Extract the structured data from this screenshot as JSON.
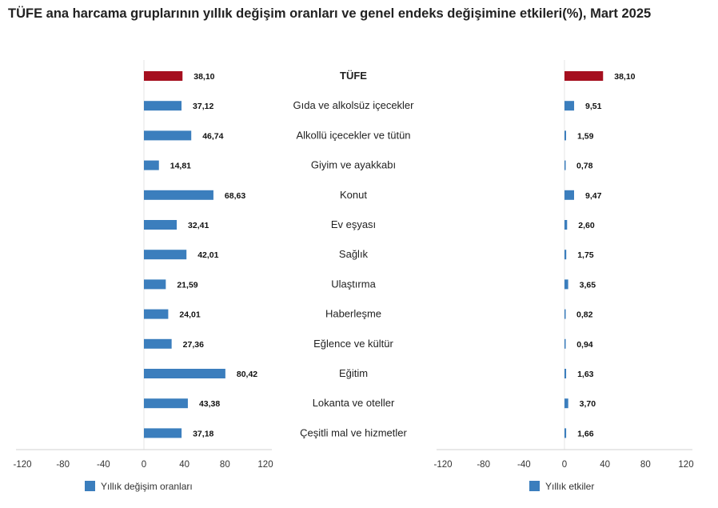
{
  "title": "TÜFE ana harcama gruplarının yıllık değişim oranları ve genel endeks değişimine etkileri(%), Mart 2025",
  "colors": {
    "highlight": "#a50f1f",
    "bar": "#3b7ebd",
    "axis": "#d0d0d0"
  },
  "chart_data": [
    {
      "type": "bar",
      "orientation": "horizontal",
      "legend": "Yıllık değişim oranları",
      "legend_position": "bottom-left",
      "categories": [
        "TÜFE",
        "Gıda ve alkolsüz içecekler",
        "Alkollü içecekler ve tütün",
        "Giyim ve ayakkabı",
        "Konut",
        "Ev eşyası",
        "Sağlık",
        "Ulaştırma",
        "Haberleşme",
        "Eğlence ve kültür",
        "Eğitim",
        "Lokanta ve oteller",
        "Çeşitli mal ve hizmetler"
      ],
      "values": [
        38.1,
        37.12,
        46.74,
        14.81,
        68.63,
        32.41,
        42.01,
        21.59,
        24.01,
        27.36,
        80.42,
        43.38,
        37.18
      ],
      "value_labels": [
        "38,10",
        "37,12",
        "46,74",
        "14,81",
        "68,63",
        "32,41",
        "42,01",
        "21,59",
        "24,01",
        "27,36",
        "80,42",
        "43,38",
        "37,18"
      ],
      "xlim": [
        -120,
        120
      ],
      "xticks": [
        -120,
        -80,
        -40,
        0,
        40,
        80,
        120
      ],
      "grid": false
    },
    {
      "type": "bar",
      "orientation": "horizontal",
      "legend": "Yıllık etkiler",
      "legend_position": "bottom-left",
      "categories": [
        "TÜFE",
        "Gıda ve alkolsüz içecekler",
        "Alkollü içecekler ve tütün",
        "Giyim ve ayakkabı",
        "Konut",
        "Ev eşyası",
        "Sağlık",
        "Ulaştırma",
        "Haberleşme",
        "Eğlence ve kültür",
        "Eğitim",
        "Lokanta ve oteller",
        "Çeşitli mal ve hizmetler"
      ],
      "values": [
        38.1,
        9.51,
        1.59,
        0.78,
        9.47,
        2.6,
        1.75,
        3.65,
        0.82,
        0.94,
        1.63,
        3.7,
        1.66
      ],
      "value_labels": [
        "38,10",
        "9,51",
        "1,59",
        "0,78",
        "9,47",
        "2,60",
        "1,75",
        "3,65",
        "0,82",
        "0,94",
        "1,63",
        "3,70",
        "1,66"
      ],
      "xlim": [
        -120,
        120
      ],
      "xticks": [
        -120,
        -80,
        -40,
        0,
        40,
        80,
        120
      ],
      "grid": false
    }
  ]
}
